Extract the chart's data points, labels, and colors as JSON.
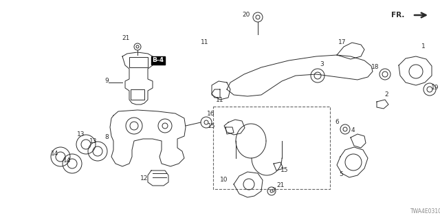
{
  "bg_color": "#ffffff",
  "line_color": "#2a2a2a",
  "fig_width": 6.4,
  "fig_height": 3.2,
  "dpi": 100,
  "diagram_code": "TWA4E0310",
  "fr_label": "FR.",
  "xlim": [
    0,
    640
  ],
  "ylim": [
    0,
    320
  ]
}
